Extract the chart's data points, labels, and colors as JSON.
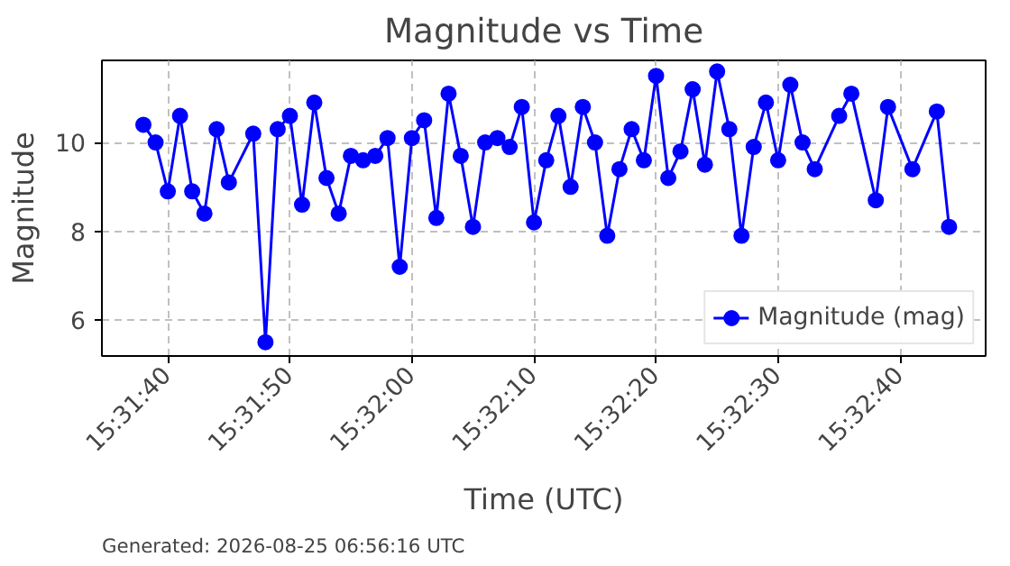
{
  "chart_data": {
    "type": "line",
    "title": "Magnitude vs Time",
    "xlabel": "Time (UTC)",
    "ylabel": "Magnitude",
    "x": [
      15.527222,
      15.5275,
      15.527778,
      15.528056,
      15.528333,
      15.528611,
      15.528889,
      15.529167,
      15.529722,
      15.53,
      15.530278,
      15.530556,
      15.530833,
      15.531111,
      15.531389,
      15.531667,
      15.531944,
      15.532222,
      15.5325,
      15.532778,
      15.533056,
      15.533333,
      15.533611,
      15.533889,
      15.534167,
      15.534444,
      15.534722,
      15.535,
      15.535278,
      15.535556,
      15.535833,
      15.536111,
      15.536389,
      15.536667,
      15.536944,
      15.537222,
      15.5375,
      15.537778,
      15.538056,
      15.538333,
      15.538611,
      15.538889,
      15.539167,
      15.539444,
      15.539722,
      15.54,
      15.540278,
      15.540556,
      15.540833,
      15.541111,
      15.541389,
      15.541667,
      15.541944,
      15.542222,
      15.5425,
      15.543056,
      15.543333,
      15.543889,
      15.544167,
      15.544722,
      15.545278,
      15.545556
    ],
    "series": [
      {
        "name": "Magnitude (mag)",
        "color": "#0000ff",
        "values": [
          10.4,
          10.0,
          8.9,
          10.6,
          8.9,
          8.4,
          10.3,
          9.1,
          10.2,
          5.5,
          10.3,
          10.6,
          8.6,
          10.9,
          9.2,
          8.4,
          9.7,
          9.6,
          9.7,
          10.1,
          7.2,
          10.1,
          10.5,
          8.3,
          11.1,
          9.7,
          8.1,
          10.0,
          10.1,
          9.9,
          10.8,
          8.2,
          9.6,
          10.6,
          9.0,
          10.8,
          10.0,
          7.9,
          9.4,
          10.3,
          9.6,
          11.5,
          9.2,
          9.8,
          11.2,
          9.5,
          11.6,
          10.3,
          7.9,
          9.9,
          10.9,
          9.6,
          11.3,
          10.0,
          9.4,
          10.6,
          11.1,
          8.7,
          10.8,
          9.4,
          10.7,
          8.1
        ]
      }
    ],
    "xlim": [
      15.526278,
      15.546389
    ],
    "xticks": [
      {
        "value": 15.527778,
        "label": "15:31:40"
      },
      {
        "value": 15.530556,
        "label": "15:31:50"
      },
      {
        "value": 15.533333,
        "label": "15:32:00"
      },
      {
        "value": 15.536111,
        "label": "15:32:10"
      },
      {
        "value": 15.538889,
        "label": "15:32:20"
      },
      {
        "value": 15.541667,
        "label": "15:32:30"
      },
      {
        "value": 15.544444,
        "label": "15:32:40"
      }
    ],
    "ylim": [
      5.19,
      11.85
    ],
    "yticks": [
      6,
      8,
      10
    ],
    "grid": true,
    "legend": "bottom right",
    "marker": "circle",
    "line_style": "solid",
    "annotations": [
      "Generated: 2026-08-25 06:56:16 UTC"
    ]
  }
}
